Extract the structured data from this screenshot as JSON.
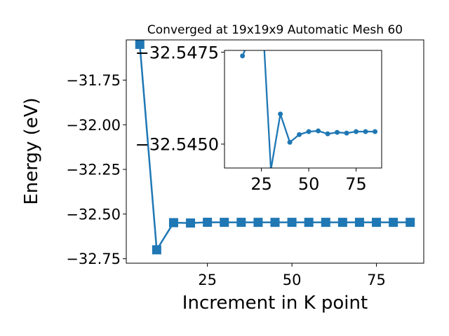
{
  "chart_data": [
    {
      "type": "line",
      "title": "Converged at 19x19x9 Automatic Mesh 60",
      "xlabel": "Increment in K point",
      "ylabel": "Energy (eV)",
      "xlim": [
        1.0,
        89.0
      ],
      "ylim": [
        -32.775,
        -31.525
      ],
      "xticks": [
        25,
        50,
        75
      ],
      "yticks": [
        -31.75,
        -32.0,
        -32.25,
        -32.5,
        -32.75
      ],
      "xtick_labels": [
        "25",
        "50",
        "75"
      ],
      "ytick_labels": [
        "−31.75",
        "−32.00",
        "−32.25",
        "−32.50",
        "−32.75"
      ],
      "marker": "square",
      "color": "#1f77b4",
      "grid": false,
      "series": [
        {
          "x": [
            5,
            10,
            15,
            20,
            25,
            30,
            35,
            40,
            45,
            50,
            55,
            60,
            65,
            70,
            75,
            80,
            85
          ],
          "y": [
            -31.55,
            -32.7,
            -32.548,
            -32.55,
            -32.546,
            -32.5462,
            -32.5462,
            -32.5463,
            -32.5463,
            -32.5462,
            -32.5462,
            -32.5462,
            -32.5462,
            -32.5462,
            -32.5462,
            -32.5462,
            -32.5462
          ]
        }
      ]
    },
    {
      "type": "line",
      "title": "",
      "xlabel": "",
      "ylabel": "",
      "inset": true,
      "xlim": [
        5.5,
        88.5
      ],
      "ylim": [
        -32.54435,
        -32.54755
      ],
      "xticks": [
        25,
        50,
        75
      ],
      "yticks": [
        -32.5475,
        -32.545
      ],
      "xtick_labels": [
        "25",
        "50",
        "75"
      ],
      "ytick_labels": [
        "−32.5475",
        "−32.5450"
      ],
      "marker": "circle",
      "color": "#1f77b4",
      "grid": false,
      "series": [
        {
          "x": [
            15,
            20,
            25,
            30,
            35,
            40,
            45,
            50,
            55,
            60,
            65,
            70,
            75,
            80,
            85
          ],
          "y": [
            -32.5474,
            -32.548,
            -32.549,
            -32.5443,
            -32.54582,
            -32.54505,
            -32.54526,
            -32.54534,
            -32.54536,
            -32.54528,
            -32.54532,
            -32.5453,
            -32.54534,
            -32.54534,
            -32.54534
          ]
        }
      ]
    }
  ]
}
